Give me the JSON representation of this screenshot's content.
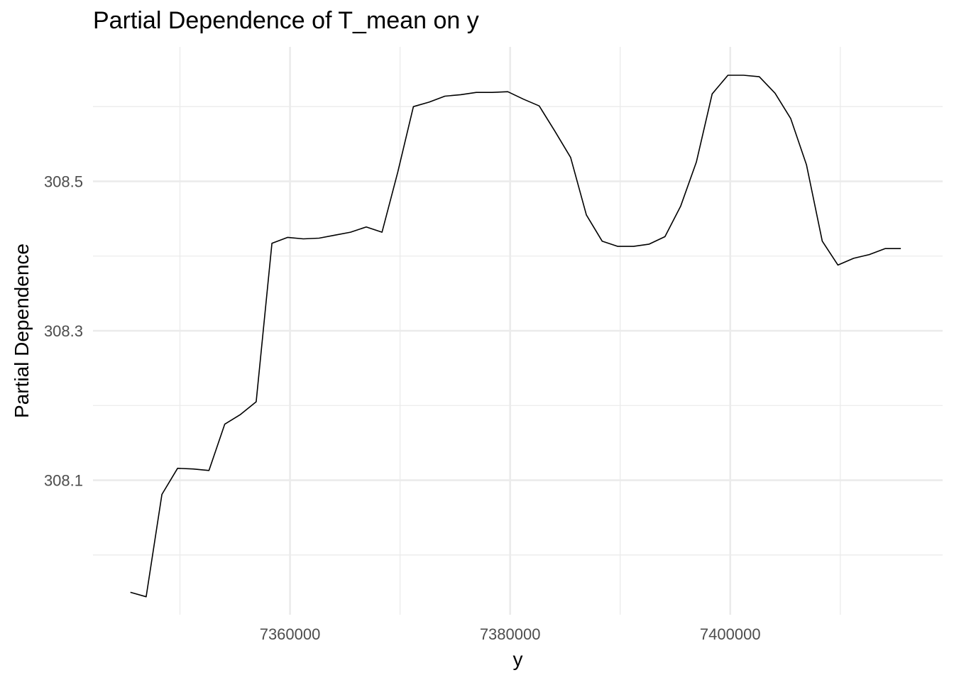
{
  "chart_data": {
    "type": "line",
    "title": "Partial Dependence of T_mean on y",
    "xlabel": "y",
    "ylabel": "Partial Dependence",
    "xlim": [
      7342100,
      7419300
    ],
    "ylim": [
      307.92,
      308.68
    ],
    "x_major_ticks": [
      7360000,
      7380000,
      7400000
    ],
    "x_tick_labels": [
      "7360000",
      "7380000",
      "7400000"
    ],
    "x_minor_ticks": [
      7350000,
      7370000,
      7390000,
      7410000
    ],
    "y_major_ticks": [
      308.1,
      308.3,
      308.5
    ],
    "y_tick_labels": [
      "308.1",
      "308.3",
      "308.5"
    ],
    "y_minor_ticks": [
      308.0,
      308.2,
      308.4,
      308.6
    ],
    "grid": true,
    "legend": "none",
    "line_color": "#000000",
    "series": [
      {
        "x": [
          7345500,
          7346930,
          7348360,
          7349790,
          7351210,
          7352640,
          7354070,
          7355500,
          7356930,
          7358360,
          7359790,
          7361210,
          7362640,
          7364070,
          7365500,
          7366930,
          7368360,
          7369790,
          7371210,
          7372640,
          7374070,
          7375500,
          7376930,
          7378360,
          7379790,
          7381210,
          7382640,
          7384070,
          7385500,
          7386930,
          7388360,
          7389790,
          7391210,
          7392640,
          7394070,
          7395500,
          7396930,
          7398360,
          7399790,
          7401210,
          7402640,
          7404070,
          7405500,
          7406930,
          7408360,
          7409790,
          7411210,
          7412640,
          7414070,
          7415500
        ],
        "values": [
          307.95,
          307.944,
          308.081,
          308.116,
          308.115,
          308.113,
          308.175,
          308.188,
          308.205,
          308.417,
          308.425,
          308.423,
          308.424,
          308.428,
          308.432,
          308.439,
          308.432,
          308.512,
          308.6,
          308.606,
          308.614,
          308.616,
          308.619,
          308.619,
          308.62,
          308.61,
          308.601,
          308.567,
          308.532,
          308.455,
          308.42,
          308.413,
          308.413,
          308.416,
          308.426,
          308.467,
          308.526,
          308.617,
          308.642,
          308.642,
          308.64,
          308.618,
          308.584,
          308.522,
          308.42,
          308.388,
          308.397,
          308.402,
          308.41,
          308.41
        ]
      }
    ]
  }
}
